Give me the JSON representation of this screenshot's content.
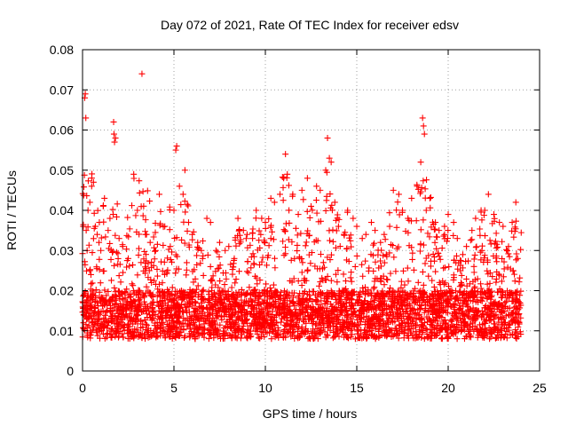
{
  "chart_data": {
    "type": "scatter",
    "title": "Day 072 of 2021, Rate Of TEC Index for receiver edsv",
    "xlabel": "GPS time / hours",
    "ylabel": "ROTI / TECUs",
    "xlim": [
      0,
      25
    ],
    "ylim": [
      0,
      0.08
    ],
    "x_ticks": [
      0,
      5,
      10,
      15,
      20,
      25
    ],
    "x_tick_labels": [
      "0",
      "5",
      "10",
      "15",
      "20",
      "25"
    ],
    "y_ticks": [
      0,
      0.01,
      0.02,
      0.03,
      0.04,
      0.05,
      0.06,
      0.07,
      0.08
    ],
    "y_tick_labels": [
      "0",
      "0.01",
      "0.02",
      "0.03",
      "0.04",
      "0.05",
      "0.06",
      "0.07",
      "0.08"
    ],
    "grid": true,
    "marker": "plus",
    "color": "#ff0000",
    "series": [
      {
        "points": [
          [
            0.05,
            0.012
          ],
          [
            0.1,
            0.015
          ],
          [
            0.12,
            0.068
          ],
          [
            0.15,
            0.069
          ],
          [
            0.18,
            0.063
          ],
          [
            0.2,
            0.035
          ],
          [
            0.25,
            0.03
          ],
          [
            0.3,
            0.04
          ],
          [
            0.4,
            0.042
          ],
          [
            0.5,
            0.046
          ],
          [
            0.6,
            0.047
          ],
          [
            0.7,
            0.036
          ],
          [
            0.8,
            0.034
          ],
          [
            0.9,
            0.032
          ],
          [
            1.0,
            0.03
          ],
          [
            1.2,
            0.043
          ],
          [
            1.4,
            0.035
          ],
          [
            1.5,
            0.038
          ],
          [
            1.7,
            0.062
          ],
          [
            1.72,
            0.059
          ],
          [
            1.75,
            0.057
          ],
          [
            1.8,
            0.058
          ],
          [
            2.0,
            0.033
          ],
          [
            2.2,
            0.031
          ],
          [
            2.5,
            0.028
          ],
          [
            2.8,
            0.049
          ],
          [
            3.0,
            0.04
          ],
          [
            3.2,
            0.027
          ],
          [
            3.25,
            0.074
          ],
          [
            3.5,
            0.034
          ],
          [
            3.7,
            0.032
          ],
          [
            4.0,
            0.03
          ],
          [
            4.2,
            0.044
          ],
          [
            4.5,
            0.036
          ],
          [
            4.8,
            0.031
          ],
          [
            5.0,
            0.04
          ],
          [
            5.1,
            0.055
          ],
          [
            5.15,
            0.056
          ],
          [
            5.3,
            0.046
          ],
          [
            5.5,
            0.044
          ],
          [
            5.6,
            0.05
          ],
          [
            5.8,
            0.037
          ],
          [
            6.0,
            0.034
          ],
          [
            6.3,
            0.032
          ],
          [
            6.5,
            0.03
          ],
          [
            6.8,
            0.038
          ],
          [
            7.0,
            0.037
          ],
          [
            7.3,
            0.03
          ],
          [
            7.5,
            0.032
          ],
          [
            7.8,
            0.03
          ],
          [
            8.0,
            0.031
          ],
          [
            8.3,
            0.028
          ],
          [
            8.5,
            0.038
          ],
          [
            8.8,
            0.035
          ],
          [
            9.0,
            0.034
          ],
          [
            9.3,
            0.033
          ],
          [
            9.5,
            0.04
          ],
          [
            9.8,
            0.038
          ],
          [
            10.0,
            0.037
          ],
          [
            10.3,
            0.043
          ],
          [
            10.5,
            0.042
          ],
          [
            10.8,
            0.044
          ],
          [
            11.0,
            0.048
          ],
          [
            11.1,
            0.054
          ],
          [
            11.2,
            0.049
          ],
          [
            11.5,
            0.044
          ],
          [
            11.8,
            0.039
          ],
          [
            12.0,
            0.045
          ],
          [
            12.3,
            0.048
          ],
          [
            12.5,
            0.041
          ],
          [
            12.8,
            0.046
          ],
          [
            13.0,
            0.045
          ],
          [
            13.3,
            0.05
          ],
          [
            13.4,
            0.058
          ],
          [
            13.5,
            0.053
          ],
          [
            13.6,
            0.052
          ],
          [
            13.8,
            0.042
          ],
          [
            14.0,
            0.036
          ],
          [
            14.3,
            0.034
          ],
          [
            14.5,
            0.04
          ],
          [
            14.8,
            0.038
          ],
          [
            15.0,
            0.036
          ],
          [
            15.3,
            0.033
          ],
          [
            15.5,
            0.034
          ],
          [
            15.8,
            0.037
          ],
          [
            16.0,
            0.035
          ],
          [
            16.3,
            0.032
          ],
          [
            16.5,
            0.034
          ],
          [
            16.8,
            0.036
          ],
          [
            17.0,
            0.045
          ],
          [
            17.3,
            0.044
          ],
          [
            17.5,
            0.04
          ],
          [
            17.8,
            0.038
          ],
          [
            18.0,
            0.043
          ],
          [
            18.3,
            0.046
          ],
          [
            18.5,
            0.052
          ],
          [
            18.6,
            0.063
          ],
          [
            18.65,
            0.061
          ],
          [
            18.7,
            0.059
          ],
          [
            18.8,
            0.04
          ],
          [
            19.0,
            0.043
          ],
          [
            19.3,
            0.037
          ],
          [
            19.5,
            0.035
          ],
          [
            19.8,
            0.036
          ],
          [
            20.0,
            0.039
          ],
          [
            20.3,
            0.037
          ],
          [
            20.5,
            0.033
          ],
          [
            20.8,
            0.029
          ],
          [
            21.0,
            0.031
          ],
          [
            21.3,
            0.035
          ],
          [
            21.5,
            0.038
          ],
          [
            21.8,
            0.04
          ],
          [
            22.0,
            0.04
          ],
          [
            22.2,
            0.044
          ],
          [
            22.5,
            0.039
          ],
          [
            22.8,
            0.037
          ],
          [
            23.0,
            0.036
          ],
          [
            23.3,
            0.031
          ],
          [
            23.5,
            0.037
          ],
          [
            23.7,
            0.042
          ],
          [
            23.8,
            0.028
          ]
        ]
      }
    ]
  }
}
